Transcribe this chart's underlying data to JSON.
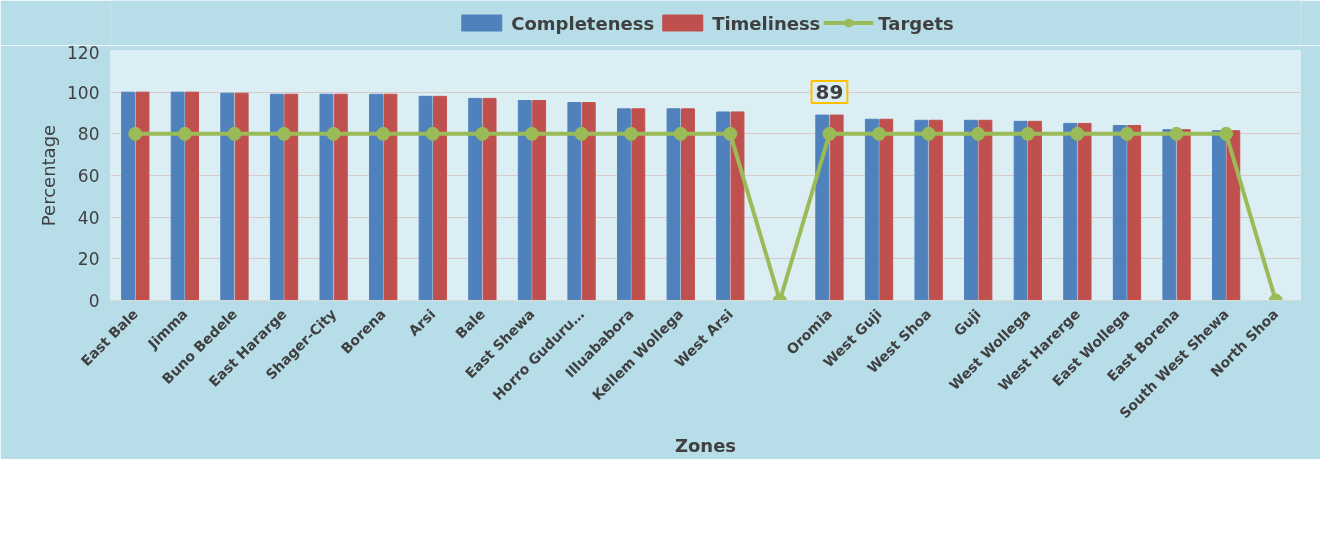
{
  "chart_data": {
    "type": "bar",
    "xlabel": "Zones",
    "ylabel": "Percentage",
    "categories": [
      "East Bale",
      "Jimma",
      "Buno Bedele",
      "East Hararge",
      "Shager-City",
      "Borena",
      "Arsi",
      "Bale",
      "East Shewa",
      "Horro Guduru…",
      "Illuababora",
      "Kellem Wollega",
      "West Arsi",
      null,
      "Oromia",
      "West Guji",
      "West Shoa",
      "Guji",
      "West Wollega",
      "West Harerge",
      "East Wollega",
      "East Borena",
      "South West Shewa",
      "North Shoa"
    ],
    "series": [
      {
        "name": "Completeness",
        "color": "#4f81bd",
        "values": [
          100,
          100,
          99.5,
          99,
          99,
          99,
          98,
          97,
          96,
          95,
          92,
          92,
          90.5,
          null,
          89,
          87,
          86.5,
          86.5,
          86,
          85,
          84,
          82,
          81.5,
          null
        ]
      },
      {
        "name": "Timeliness",
        "color": "#c0504d",
        "values": [
          100,
          100,
          99.5,
          99,
          99,
          99,
          98,
          97,
          96,
          95,
          92,
          92,
          90.5,
          null,
          89,
          87,
          86.5,
          86.5,
          86,
          85,
          84,
          82,
          81.5,
          null
        ]
      },
      {
        "name": "Targets",
        "type": "line",
        "color": "#9bbb59",
        "marker": "circle",
        "values": [
          80,
          80,
          80,
          80,
          80,
          80,
          80,
          80,
          80,
          80,
          80,
          80,
          80,
          0,
          80,
          80,
          80,
          80,
          80,
          80,
          80,
          80,
          80,
          0
        ]
      }
    ],
    "ylim": [
      0,
      120
    ],
    "yticks": [
      0,
      20,
      40,
      60,
      80,
      100,
      120
    ],
    "grid": "y",
    "legend": "top",
    "annotations": [
      {
        "text": "89",
        "x": "Oromia",
        "y": 89
      }
    ]
  }
}
